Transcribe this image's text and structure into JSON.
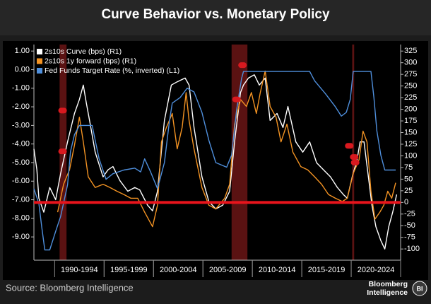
{
  "chart_data": {
    "type": "line",
    "title": "Curve Behavior vs. Monetary Policy",
    "source": "Source: Bloomberg Intelligence",
    "logo": [
      "Bloomberg",
      "Intelligence"
    ],
    "logo_badge": "BI",
    "xlim": [
      1987.9,
      2025.0
    ],
    "xbands": [
      {
        "from": 1990,
        "to": 1995,
        "label": "1990-1994"
      },
      {
        "from": 1995,
        "to": 2000,
        "label": "1995-1999"
      },
      {
        "from": 2000,
        "to": 2005,
        "label": "2000-2004"
      },
      {
        "from": 2005,
        "to": 2010,
        "label": "2005-2009"
      },
      {
        "from": 2010,
        "to": 2015,
        "label": "2010-2014"
      },
      {
        "from": 2015,
        "to": 2020,
        "label": "2015-2019"
      },
      {
        "from": 2020,
        "to": 2025,
        "label": "2020-2024"
      }
    ],
    "ylim": [
      -10.25,
      1.35
    ],
    "yticks": [
      {
        "value": 1,
        "label": "1.00"
      },
      {
        "value": 0,
        "label": "0.00"
      },
      {
        "value": -1,
        "label": "-1.00"
      },
      {
        "value": -2,
        "label": "-2.00"
      },
      {
        "value": -3,
        "label": "-3.00"
      },
      {
        "value": -4,
        "label": "-4.00"
      },
      {
        "value": -5,
        "label": "-5.00"
      },
      {
        "value": -6,
        "label": "-6.00"
      },
      {
        "value": -7,
        "label": "-7.00"
      },
      {
        "value": -8,
        "label": "-8.00"
      },
      {
        "value": -9,
        "label": "-9.00"
      }
    ],
    "y2lim": [
      -124,
      339
    ],
    "y2ticks": [
      325,
      300,
      275,
      250,
      225,
      200,
      175,
      150,
      125,
      100,
      75,
      50,
      25,
      0,
      -25,
      -50,
      -75,
      -100
    ],
    "shaded_ranges": {
      "color": "#5a1212",
      "ranges": [
        [
          1990.5,
          1991.2
        ],
        [
          2007.9,
          2009.5
        ],
        [
          2020.1,
          2020.3
        ]
      ]
    },
    "reference_line": {
      "value": 0,
      "axis": "y2",
      "color": "#e8141c"
    },
    "event_markers": {
      "color": "#d8191f",
      "x": [
        1990.8,
        1990.8,
        2008.4,
        2009.0,
        2019.8,
        2020.3,
        2020.4
      ],
      "y": [
        -2.2,
        -4.4,
        -1.6,
        0.24,
        -4.1,
        -4.7,
        -5.0
      ]
    },
    "series": [
      {
        "name": "2s10s Curve (bps) (R1)",
        "color": "#ffffff",
        "axis": "y2",
        "x": [
          1987.9,
          1988.2,
          1988.4,
          1988.9,
          1989.5,
          1990.1,
          1990.6,
          1991.3,
          1992.0,
          1992.5,
          1992.9,
          1993.2,
          1993.6,
          1994.1,
          1994.9,
          1995.4,
          1995.9,
          1996.6,
          1997.4,
          1998.1,
          1998.6,
          1999.4,
          1999.9,
          2000.4,
          2001.1,
          2001.8,
          2002.4,
          2003.2,
          2003.6,
          2004.1,
          2004.9,
          2005.6,
          2006.3,
          2007.0,
          2007.7,
          2008.2,
          2008.8,
          2009.1,
          2009.6,
          2010.2,
          2010.7,
          2011.3,
          2011.8,
          2012.5,
          2013.1,
          2013.6,
          2014.4,
          2015.1,
          2015.8,
          2016.5,
          2017.2,
          2017.9,
          2018.6,
          2019.2,
          2019.6,
          2020.1,
          2020.6,
          2020.9,
          2021.3,
          2021.7,
          2022.1,
          2022.5,
          2023.0,
          2023.4,
          2023.8,
          2024.2,
          2024.6
        ],
        "values": [
          115,
          70,
          9,
          -21,
          32,
          6,
          62,
          130,
          191,
          221,
          252,
          214,
          168,
          108,
          55,
          70,
          77,
          47,
          24,
          32,
          27,
          -6,
          -18,
          24,
          176,
          252,
          259,
          267,
          252,
          161,
          55,
          2,
          -14,
          -6,
          24,
          130,
          236,
          252,
          267,
          274,
          252,
          267,
          176,
          191,
          161,
          206,
          130,
          108,
          130,
          85,
          70,
          55,
          32,
          17,
          9,
          55,
          92,
          130,
          130,
          62,
          -6,
          -52,
          -82,
          -100,
          -52,
          -21,
          17
        ]
      },
      {
        "name": "2s10s 1y forward (bps) (R1)",
        "color": "#f39323",
        "axis": "y2",
        "x": [
          1990.3,
          1990.9,
          1991.5,
          1992.0,
          1992.5,
          1992.9,
          1993.4,
          1994.1,
          1994.9,
          1995.6,
          1996.3,
          1997.0,
          1997.7,
          1998.4,
          1999.1,
          1999.9,
          2000.4,
          2000.8,
          2001.3,
          2001.9,
          2002.4,
          2002.9,
          2003.3,
          2003.6,
          2004.1,
          2004.9,
          2005.6,
          2006.3,
          2007.2,
          2007.7,
          2008.2,
          2008.8,
          2009.4,
          2009.9,
          2010.4,
          2010.8,
          2011.3,
          2011.8,
          2012.4,
          2012.9,
          2013.5,
          2014.1,
          2014.9,
          2015.6,
          2016.3,
          2017.0,
          2017.7,
          2018.4,
          2019.1,
          2019.6,
          2020.2,
          2020.8,
          2021.2,
          2021.6,
          2022.0,
          2022.4,
          2022.9,
          2023.3,
          2023.7,
          2024.1,
          2024.5
        ],
        "values": [
          -21,
          39,
          70,
          123,
          183,
          130,
          55,
          32,
          39,
          32,
          24,
          17,
          9,
          9,
          -21,
          -52,
          -6,
          130,
          161,
          191,
          115,
          161,
          236,
          176,
          115,
          32,
          -6,
          -14,
          9,
          39,
          168,
          221,
          206,
          236,
          191,
          236,
          282,
          206,
          183,
          130,
          168,
          108,
          77,
          70,
          55,
          39,
          17,
          9,
          2,
          9,
          62,
          92,
          153,
          130,
          24,
          -36,
          -21,
          -6,
          24,
          9,
          42
        ]
      },
      {
        "name": "Fed Funds Target Rate (%, inverted) (L1)",
        "color": "#4f8fdc",
        "axis": "y",
        "x": [
          1987.9,
          1988.4,
          1988.7,
          1989.0,
          1989.5,
          1990.1,
          1990.6,
          1991.3,
          1991.6,
          1992.0,
          1992.5,
          1993.8,
          1994.1,
          1994.5,
          1995.2,
          1995.9,
          1997.0,
          1998.1,
          1998.7,
          1999.1,
          1999.7,
          2000.4,
          2001.1,
          2001.6,
          2001.9,
          2002.7,
          2003.4,
          2004.1,
          2004.9,
          2005.6,
          2006.3,
          2007.4,
          2007.9,
          2008.4,
          2008.9,
          2009.1,
          2015.8,
          2016.3,
          2017.4,
          2018.4,
          2019.0,
          2019.5,
          2019.9,
          2020.2,
          2022.0,
          2022.3,
          2022.6,
          2023.0,
          2023.4,
          2024.5
        ],
        "values": [
          -6.4,
          -7.2,
          -8.5,
          -9.7,
          -9.7,
          -8.7,
          -7.9,
          -6.2,
          -4.4,
          -3.5,
          -3.0,
          -3.0,
          -3.8,
          -4.8,
          -5.9,
          -5.6,
          -5.4,
          -5.3,
          -5.5,
          -4.8,
          -5.5,
          -6.4,
          -5.0,
          -2.8,
          -1.8,
          -1.5,
          -1.0,
          -1.2,
          -2.3,
          -3.8,
          -5.0,
          -5.25,
          -4.6,
          -2.2,
          -0.5,
          -0.1,
          -0.1,
          -0.6,
          -1.3,
          -2.0,
          -2.5,
          -2.3,
          -1.6,
          -0.1,
          -0.1,
          -1.5,
          -3.3,
          -4.6,
          -5.4,
          -5.4
        ]
      }
    ]
  }
}
